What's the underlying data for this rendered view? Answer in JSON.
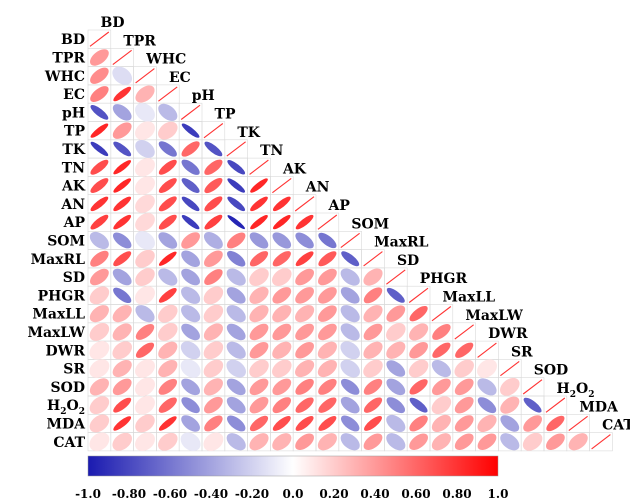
{
  "chart_data": {
    "type": "heatmap",
    "subtype": "lower-triangle correlation matrix (ellipse glyphs)",
    "variables": [
      "BD",
      "TPR",
      "WHC",
      "EC",
      "pH",
      "TP",
      "TK",
      "TN",
      "AK",
      "AN",
      "AP",
      "SOM",
      "MaxRL",
      "SD",
      "PHGR",
      "MaxLL",
      "MaxLW",
      "DWR",
      "SR",
      "SOD",
      "H2O2",
      "MDA",
      "CAT"
    ],
    "variable_labels": [
      {
        "main": "BD",
        "sub": ""
      },
      {
        "main": "TPR",
        "sub": ""
      },
      {
        "main": "WHC",
        "sub": ""
      },
      {
        "main": "EC",
        "sub": ""
      },
      {
        "main": "pH",
        "sub": ""
      },
      {
        "main": "TP",
        "sub": ""
      },
      {
        "main": "TK",
        "sub": ""
      },
      {
        "main": "TN",
        "sub": ""
      },
      {
        "main": "AK",
        "sub": ""
      },
      {
        "main": "AN",
        "sub": ""
      },
      {
        "main": "AP",
        "sub": ""
      },
      {
        "main": "SOM",
        "sub": ""
      },
      {
        "main": "MaxRL",
        "sub": ""
      },
      {
        "main": "SD",
        "sub": ""
      },
      {
        "main": "PHGR",
        "sub": ""
      },
      {
        "main": "MaxLL",
        "sub": ""
      },
      {
        "main": "MaxLW",
        "sub": ""
      },
      {
        "main": "DWR",
        "sub": ""
      },
      {
        "main": "SR",
        "sub": ""
      },
      {
        "main": "SOD",
        "sub": ""
      },
      {
        "main": "H",
        "sub": "2",
        "main2": "O",
        "sub2": "2"
      },
      {
        "main": "MDA",
        "sub": ""
      },
      {
        "main": "CAT",
        "sub": ""
      }
    ],
    "lower_triangle": [
      [],
      [
        0.4
      ],
      [
        0.45,
        -0.15
      ],
      [
        0.5,
        0.8,
        0.3
      ],
      [
        -0.75,
        -0.4,
        -0.1,
        -0.3
      ],
      [
        0.85,
        0.4,
        0.1,
        0.2,
        -0.85
      ],
      [
        -0.85,
        -0.75,
        -0.2,
        -0.6,
        0.6,
        -0.75
      ],
      [
        0.7,
        0.85,
        0.1,
        0.7,
        -0.6,
        0.6,
        -0.8
      ],
      [
        0.7,
        0.85,
        0.1,
        0.7,
        -0.7,
        0.65,
        -0.85,
        0.85
      ],
      [
        0.8,
        0.8,
        0.15,
        0.7,
        -0.8,
        0.7,
        -0.8,
        0.8,
        0.8
      ],
      [
        0.75,
        0.8,
        0.15,
        0.7,
        -0.85,
        0.75,
        -0.95,
        0.85,
        0.85,
        0.8
      ],
      [
        -0.3,
        -0.5,
        -0.1,
        -0.4,
        0.4,
        -0.35,
        0.5,
        -0.45,
        -0.45,
        -0.5,
        -0.6
      ],
      [
        0.5,
        0.7,
        0.2,
        0.85,
        -0.4,
        0.4,
        -0.55,
        0.6,
        0.6,
        0.75,
        0.65,
        -0.7
      ],
      [
        0.4,
        -0.4,
        0.2,
        -0.3,
        -0.4,
        0.5,
        -0.3,
        0.2,
        0.2,
        0.4,
        0.4,
        -0.3,
        0.3
      ],
      [
        0.2,
        -0.6,
        0.1,
        0.75,
        -0.3,
        0.2,
        -0.4,
        0.3,
        0.4,
        0.4,
        0.4,
        -0.4,
        0.5,
        -0.7
      ],
      [
        0.3,
        0.3,
        -0.3,
        0.2,
        -0.3,
        0.2,
        -0.3,
        0.3,
        0.3,
        0.3,
        0.4,
        -0.3,
        0.3,
        0.4,
        0.6
      ],
      [
        0.2,
        0.3,
        0.5,
        0.2,
        -0.4,
        0.3,
        -0.4,
        0.4,
        0.4,
        0.4,
        0.4,
        -0.3,
        0.4,
        0.2,
        0.3,
        0.5
      ],
      [
        0.1,
        0.2,
        0.6,
        0.3,
        -0.2,
        0.2,
        -0.3,
        0.4,
        0.3,
        0.4,
        0.3,
        -0.2,
        0.3,
        0.3,
        0.4,
        0.6,
        0.6
      ],
      [
        0.1,
        0.3,
        0.1,
        0.3,
        -0.1,
        0.2,
        -0.2,
        0.2,
        0.2,
        0.3,
        0.3,
        -0.2,
        0.2,
        -0.4,
        0.2,
        -0.3,
        0.2,
        0.1
      ],
      [
        0.3,
        0.4,
        0.1,
        0.5,
        -0.4,
        0.3,
        -0.4,
        0.4,
        0.4,
        0.5,
        0.5,
        -0.5,
        0.5,
        -0.4,
        0.6,
        0.4,
        0.4,
        -0.3,
        0.2
      ],
      [
        0.2,
        0.7,
        0.1,
        0.6,
        -0.5,
        0.4,
        -0.4,
        0.4,
        0.5,
        0.6,
        0.6,
        -0.4,
        0.6,
        -0.5,
        -0.7,
        0.2,
        0.4,
        -0.5,
        0.3,
        -0.7
      ],
      [
        0.2,
        0.8,
        0.2,
        0.8,
        -0.4,
        0.5,
        -0.5,
        0.6,
        0.7,
        0.7,
        0.7,
        -0.5,
        0.7,
        -0.3,
        0.5,
        0.3,
        0.4,
        0.3,
        -0.4,
        0.4,
        0.6
      ],
      [
        0.1,
        0.2,
        0.1,
        0.2,
        -0.1,
        0.1,
        -0.3,
        0.3,
        0.3,
        0.4,
        0.3,
        -0.3,
        0.4,
        -0.3,
        0.4,
        0.3,
        0.4,
        0.4,
        -0.3,
        0.2,
        0.4,
        0.3
      ]
    ],
    "colorbar": {
      "min": -1.0,
      "max": 1.0,
      "ticks": [
        "-1.0",
        "-0.80",
        "-0.60",
        "-0.40",
        "-0.20",
        "0.0",
        "0.20",
        "0.40",
        "0.60",
        "0.80",
        "1.0"
      ],
      "negative_color": "#1a1ab0",
      "neutral_color": "#ffffff",
      "positive_color": "#ff0000"
    },
    "diagonal_color": "#ff3333",
    "title": "",
    "xlabel": "",
    "ylabel": ""
  }
}
